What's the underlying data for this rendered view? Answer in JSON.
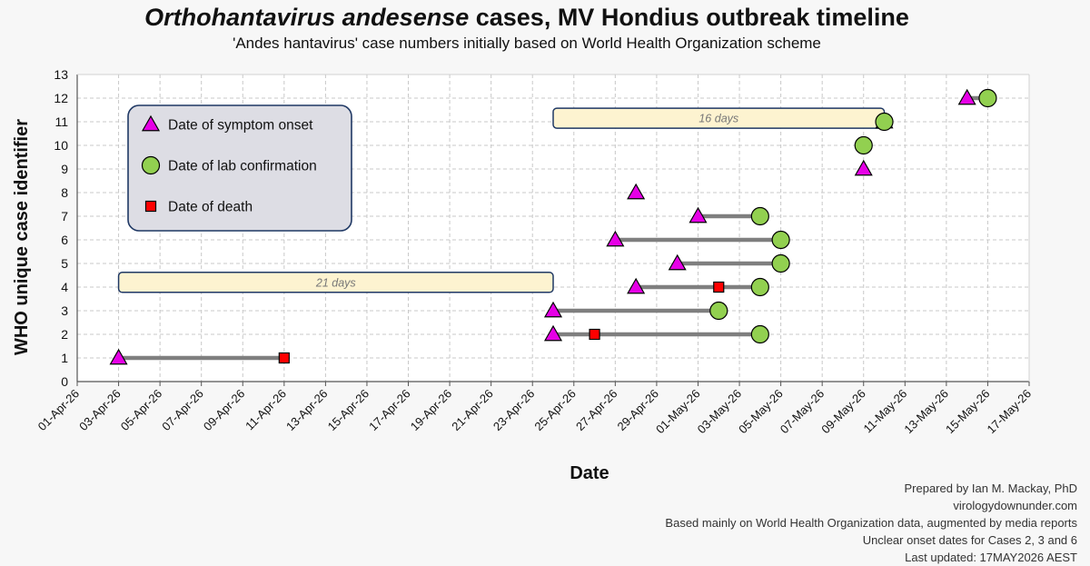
{
  "chart_data": {
    "type": "timeline",
    "title_italic": "Orthohantavirus andesense",
    "title_rest": " cases, MV Hondius outbreak timeline",
    "subtitle": "'Andes hantavirus' case numbers initially based on World Health Organization scheme",
    "xlabel": "Date",
    "ylabel": "WHO unique case identifier",
    "xlim": [
      "2026-04-01",
      "2026-05-17"
    ],
    "ylim": [
      0,
      13
    ],
    "grid": "vertical dashed + horizontal dashed",
    "x_ticks": [
      "01-Apr-26",
      "03-Apr-26",
      "05-Apr-26",
      "07-Apr-26",
      "09-Apr-26",
      "11-Apr-26",
      "13-Apr-26",
      "15-Apr-26",
      "17-Apr-26",
      "19-Apr-26",
      "21-Apr-26",
      "23-Apr-26",
      "25-Apr-26",
      "27-Apr-26",
      "29-Apr-26",
      "01-May-26",
      "03-May-26",
      "05-May-26",
      "07-May-26",
      "09-May-26",
      "11-May-26",
      "13-May-26",
      "15-May-26",
      "17-May-26"
    ],
    "y_ticks": [
      0,
      1,
      2,
      3,
      4,
      5,
      6,
      7,
      8,
      9,
      10,
      11,
      12,
      13
    ],
    "legend": {
      "placement": "top-left",
      "entries": [
        {
          "label": "Date of symptom onset",
          "marker": "triangle",
          "color": "#e600e6"
        },
        {
          "label": "Date of lab confirmation",
          "marker": "circle",
          "color": "#92d050"
        },
        {
          "label": "Date of death",
          "marker": "square",
          "color": "#ff0000"
        }
      ]
    },
    "cases": [
      {
        "id": 1,
        "onset": "2026-04-03",
        "confirmation": null,
        "death": "2026-04-11"
      },
      {
        "id": 2,
        "onset": "2026-04-24",
        "confirmation": "2026-05-04",
        "death": "2026-04-26"
      },
      {
        "id": 3,
        "onset": "2026-04-24",
        "confirmation": "2026-05-02",
        "death": null
      },
      {
        "id": 4,
        "onset": "2026-04-28",
        "confirmation": "2026-05-04",
        "death": "2026-05-02"
      },
      {
        "id": 5,
        "onset": "2026-04-30",
        "confirmation": "2026-05-05",
        "death": null
      },
      {
        "id": 6,
        "onset": "2026-04-27",
        "confirmation": "2026-05-05",
        "death": null
      },
      {
        "id": 7,
        "onset": "2026-05-01",
        "confirmation": "2026-05-04",
        "death": null
      },
      {
        "id": 8,
        "onset": "2026-04-28",
        "confirmation": null,
        "death": null
      },
      {
        "id": 9,
        "onset": "2026-05-09",
        "confirmation": null,
        "death": null
      },
      {
        "id": 10,
        "onset": null,
        "confirmation": "2026-05-09",
        "death": null
      },
      {
        "id": 11,
        "onset": "2026-05-10",
        "confirmation": "2026-05-10",
        "death": null
      },
      {
        "id": 12,
        "onset": "2026-05-14",
        "confirmation": "2026-05-15",
        "death": null
      }
    ],
    "annotations": [
      {
        "text": "21 days",
        "start": "2026-04-03",
        "end": "2026-04-24",
        "y": 4.2
      },
      {
        "text": "16 days",
        "start": "2026-04-24",
        "end": "2026-05-10",
        "y": 11.15
      }
    ]
  },
  "footer": {
    "line1": "Prepared by Ian M. Mackay, PhD",
    "line2": "virologydownunder.com",
    "line3": "Based mainly on World Health Organization data, augmented by media reports",
    "line4": "Unclear onset dates for Cases 2, 3 and 6",
    "line5": "Last updated: 17MAY2026 AEST"
  },
  "colors": {
    "onset": "#e600e6",
    "confirmation": "#92d050",
    "death": "#ff0000",
    "bar": "#7f7f7f",
    "annotation_fill": "#fdf3d0",
    "legend_fill": "#dddde4",
    "frame": "#1f3864"
  }
}
